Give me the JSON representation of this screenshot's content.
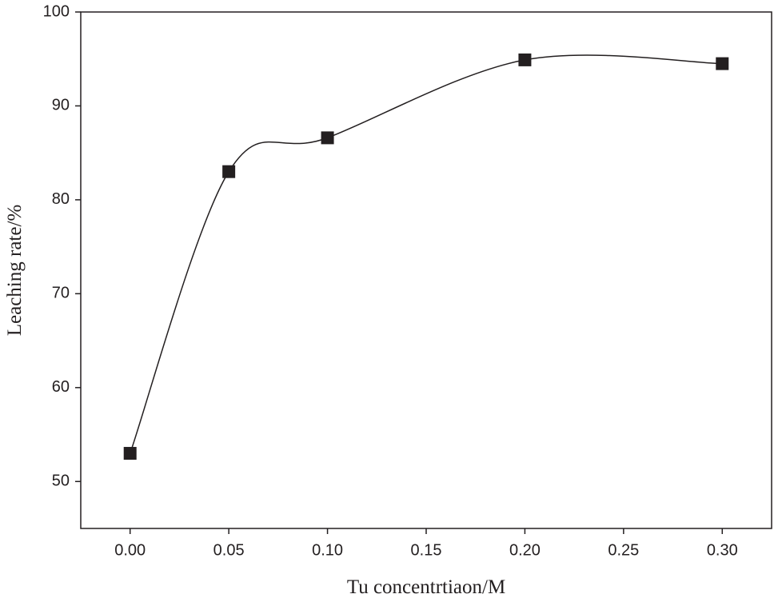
{
  "chart_data": {
    "type": "line",
    "x_label": "Tu concentrtiaon/M",
    "y_label": "Leaching rate/%",
    "x": [
      0,
      0.05,
      0.1,
      0.2,
      0.3
    ],
    "series": [
      {
        "color": "#231f20",
        "values": [
          53.0,
          83.0,
          86.6,
          94.9,
          94.5
        ]
      }
    ],
    "xlim": [
      -0.025,
      0.325
    ],
    "ylim": [
      45,
      100
    ],
    "xticks": [
      {
        "value": 0,
        "label": "0.00"
      },
      {
        "value": 0.05,
        "label": "0.05"
      },
      {
        "value": 0.1,
        "label": "0.10"
      },
      {
        "value": 0.15,
        "label": "0.15"
      },
      {
        "value": 0.2,
        "label": "0.20"
      },
      {
        "value": 0.25,
        "label": "0.25"
      },
      {
        "value": 0.3,
        "label": "0.30"
      }
    ],
    "yticks": [
      50,
      60,
      70,
      80,
      90,
      100
    ],
    "grid": false,
    "smooth": true
  }
}
